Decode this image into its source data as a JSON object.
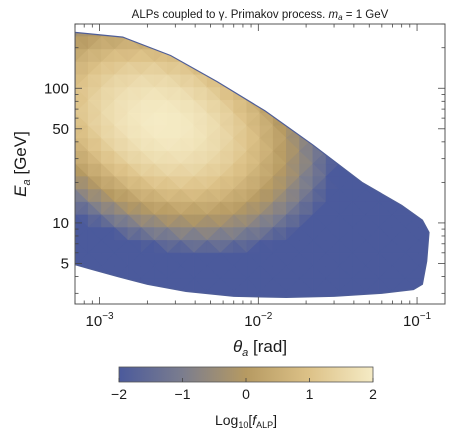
{
  "chart_data": {
    "type": "heatmap",
    "title": "ALPs coupled to γ. Primakov process. m_a = 1 GeV",
    "title_parts": {
      "lead": "ALPs coupled to γ. Primakov process. ",
      "var": "m",
      "sub": "a",
      "tail": " = 1 GeV"
    },
    "xlabel": {
      "var": "θ",
      "sub": "a",
      "unit": " [rad]"
    },
    "ylabel": {
      "var": "E",
      "sub": "a",
      "unit": " [GeV]"
    },
    "x_scale": "log",
    "y_scale": "log",
    "xlim": [
      0.0007,
      0.15
    ],
    "ylim": [
      2.5,
      300
    ],
    "x_ticks": [
      {
        "value": 0.001,
        "base": "10",
        "exp": "−3"
      },
      {
        "value": 0.01,
        "base": "10",
        "exp": "−2"
      },
      {
        "value": 0.1,
        "base": "10",
        "exp": "−1"
      }
    ],
    "y_ticks": [
      {
        "value": 5,
        "label": "5"
      },
      {
        "value": 10,
        "label": "10"
      },
      {
        "value": 50,
        "label": "50"
      },
      {
        "value": 100,
        "label": "100"
      }
    ],
    "colorbar": {
      "label": {
        "base": "Log",
        "sub1": "10",
        "open": "[",
        "var": "f",
        "sub2": "ALP",
        "close": "]"
      },
      "range": [
        -2,
        2
      ],
      "ticks": [
        {
          "value": -2,
          "label": "−2"
        },
        {
          "value": -1,
          "label": "−1"
        },
        {
          "value": 0,
          "label": "0"
        },
        {
          "value": 1,
          "label": "1"
        },
        {
          "value": 2,
          "label": "2"
        }
      ],
      "colors": [
        "#4b5a9c",
        "#7b7d8e",
        "#b69a62",
        "#ddc288",
        "#f5ebc5"
      ]
    },
    "density_model": {
      "peak_log10": 2.0,
      "peak_theta": 0.0025,
      "peak_E": 55,
      "slope_dlogE_dlogtheta": -0.68,
      "falloff_along": 2.9,
      "falloff_across": 5.2
    },
    "region_boundary": [
      [
        0.0007,
        260
      ],
      [
        0.0014,
        240
      ],
      [
        0.0028,
        175
      ],
      [
        0.0055,
        112
      ],
      [
        0.011,
        68
      ],
      [
        0.022,
        38
      ],
      [
        0.045,
        20
      ],
      [
        0.08,
        13.5
      ],
      [
        0.108,
        10.5
      ],
      [
        0.119,
        8.5
      ],
      [
        0.115,
        5.2
      ],
      [
        0.108,
        3.5
      ],
      [
        0.095,
        3.2
      ],
      [
        0.06,
        3.0
      ],
      [
        0.03,
        2.85
      ],
      [
        0.015,
        2.8
      ],
      [
        0.007,
        2.85
      ],
      [
        0.0035,
        3.1
      ],
      [
        0.002,
        3.5
      ],
      [
        0.0013,
        4.0
      ],
      [
        0.0009,
        4.5
      ],
      [
        0.0007,
        4.9
      ]
    ]
  }
}
